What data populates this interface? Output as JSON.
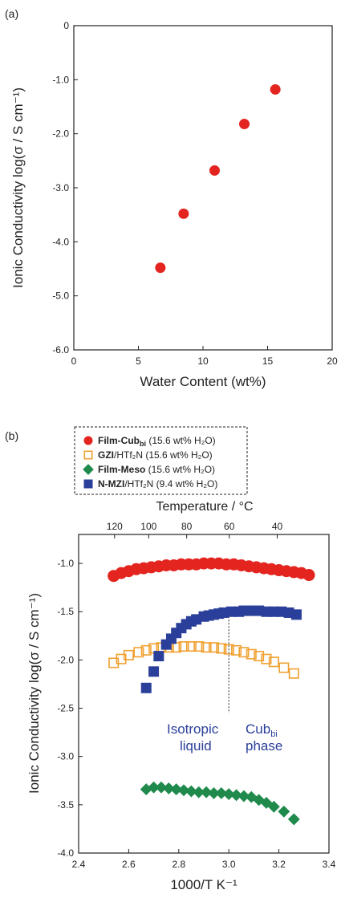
{
  "panel_a": {
    "label": "(a)"
  },
  "panel_b": {
    "label": "(b)"
  },
  "legend": [
    {
      "bold": "Film-Cub",
      "sub": "bi",
      "rest": " (15.6 wt% H₂O)",
      "marker": "circle",
      "color": "#e3241f"
    },
    {
      "bold": "GZI",
      "sub": "",
      "rest": "/HTf₂N (15.6 wt% H₂O)",
      "marker": "open-square",
      "color": "#f0a030"
    },
    {
      "bold": "Film-Meso",
      "sub": "",
      "rest": " (15.6 wt% H₂O)",
      "marker": "diamond",
      "color": "#1f8a4c"
    },
    {
      "bold": "N-MZI",
      "sub": "",
      "rest": "/HTf₂N (9.4 wt% H₂O)",
      "marker": "square",
      "color": "#2a3f9a"
    }
  ],
  "annotations": {
    "isotropic_line1": "Isotropic",
    "isotropic_line2": "liquid",
    "cub_main": "Cub",
    "cub_sub": "bi",
    "cub_line2": "phase"
  },
  "chart_data": [
    {
      "type": "scatter",
      "xlabel": "Water Content (wt%)",
      "ylabel": "Ionic Conductivity log(σ / S cm⁻¹)",
      "xlim": [
        0,
        20
      ],
      "ylim": [
        -6.0,
        0
      ],
      "xticks": [
        0,
        5,
        10,
        15,
        20
      ],
      "xtick_labels": [
        "0",
        "5",
        "10",
        "15",
        "20"
      ],
      "yticks": [
        0,
        -1.0,
        -2.0,
        -3.0,
        -4.0,
        -5.0,
        -6.0
      ],
      "ytick_labels": [
        "0",
        "-1.0",
        "-2.0",
        "-3.0",
        "-4.0",
        "-5.0",
        "-6.0"
      ],
      "grid": false,
      "series": [
        {
          "color": "#e3241f",
          "marker": "circle",
          "x": [
            6.7,
            8.5,
            10.9,
            13.2,
            15.6
          ],
          "y": [
            -4.48,
            -3.48,
            -2.68,
            -1.82,
            -1.18
          ]
        }
      ]
    },
    {
      "type": "scatter",
      "xlabel": "1000/T K⁻¹",
      "ylabel": "Ionic Conductivity log(σ / S cm⁻¹)",
      "top_axis_label": "Temperature / °C",
      "xlim": [
        2.4,
        3.4
      ],
      "ylim": [
        -4.0,
        -0.7
      ],
      "xticks": [
        2.4,
        2.6,
        2.8,
        3.0,
        3.2,
        3.4
      ],
      "xtick_labels": [
        "2.4",
        "2.6",
        "2.8",
        "3.0",
        "3.2",
        "3.4"
      ],
      "yticks": [
        -1.0,
        -1.5,
        -2.0,
        -2.5,
        -3.0,
        -3.5,
        -4.0
      ],
      "ytick_labels": [
        "-1.0",
        "-1.5",
        "-2.0",
        "-2.5",
        "-3.0",
        "-3.5",
        "-4.0"
      ],
      "top_ticks": [
        120,
        100,
        80,
        60,
        40
      ],
      "top_tick_labels": [
        "120",
        "100",
        "80",
        "60",
        "40"
      ],
      "transition_x": 3.0,
      "grid": false,
      "legend_position": "top",
      "series": [
        {
          "color": "#e3241f",
          "marker": "circle",
          "x": [
            2.54,
            2.57,
            2.6,
            2.63,
            2.66,
            2.69,
            2.72,
            2.75,
            2.78,
            2.81,
            2.84,
            2.87,
            2.9,
            2.93,
            2.96,
            2.99,
            3.02,
            3.05,
            3.08,
            3.11,
            3.14,
            3.17,
            3.2,
            3.23,
            3.26,
            3.29,
            3.32
          ],
          "y": [
            -1.13,
            -1.1,
            -1.08,
            -1.06,
            -1.05,
            -1.04,
            -1.03,
            -1.02,
            -1.02,
            -1.01,
            -1.01,
            -1.01,
            -1.0,
            -1.0,
            -1.0,
            -1.01,
            -1.01,
            -1.02,
            -1.03,
            -1.04,
            -1.05,
            -1.06,
            -1.07,
            -1.08,
            -1.09,
            -1.1,
            -1.12
          ]
        },
        {
          "color": "#f0a030",
          "marker": "open-square",
          "x": [
            2.54,
            2.57,
            2.6,
            2.64,
            2.67,
            2.7,
            2.73,
            2.76,
            2.79,
            2.82,
            2.85,
            2.88,
            2.91,
            2.94,
            2.97,
            3.0,
            3.03,
            3.06,
            3.09,
            3.12,
            3.15,
            3.18,
            3.22,
            3.26
          ],
          "y": [
            -2.03,
            -1.99,
            -1.95,
            -1.92,
            -1.9,
            -1.88,
            -1.87,
            -1.87,
            -1.87,
            -1.86,
            -1.86,
            -1.86,
            -1.87,
            -1.87,
            -1.88,
            -1.89,
            -1.9,
            -1.92,
            -1.94,
            -1.96,
            -1.99,
            -2.02,
            -2.08,
            -2.14
          ]
        },
        {
          "color": "#1f8a4c",
          "marker": "diamond",
          "x": [
            2.67,
            2.7,
            2.73,
            2.76,
            2.79,
            2.82,
            2.85,
            2.88,
            2.91,
            2.94,
            2.97,
            3.0,
            3.03,
            3.06,
            3.09,
            3.12,
            3.15,
            3.18,
            3.22,
            3.26
          ],
          "y": [
            -3.34,
            -3.32,
            -3.32,
            -3.33,
            -3.34,
            -3.35,
            -3.36,
            -3.37,
            -3.37,
            -3.38,
            -3.38,
            -3.39,
            -3.4,
            -3.41,
            -3.42,
            -3.45,
            -3.48,
            -3.52,
            -3.57,
            -3.65
          ]
        },
        {
          "color": "#2a3f9a",
          "marker": "square",
          "x": [
            2.67,
            2.7,
            2.72,
            2.75,
            2.77,
            2.79,
            2.81,
            2.83,
            2.85,
            2.87,
            2.9,
            2.92,
            2.94,
            2.96,
            2.98,
            3.01,
            3.04,
            3.06,
            3.09,
            3.12,
            3.15,
            3.18,
            3.21,
            3.24,
            3.27
          ],
          "y": [
            -2.29,
            -2.12,
            -1.96,
            -1.84,
            -1.78,
            -1.72,
            -1.67,
            -1.63,
            -1.6,
            -1.58,
            -1.55,
            -1.54,
            -1.53,
            -1.52,
            -1.51,
            -1.5,
            -1.5,
            -1.49,
            -1.49,
            -1.49,
            -1.5,
            -1.5,
            -1.5,
            -1.51,
            -1.53
          ]
        }
      ]
    }
  ]
}
